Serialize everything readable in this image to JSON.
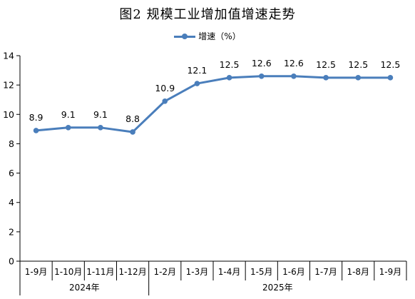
{
  "chart_data": {
    "type": "line",
    "title": "图2  规模工业增加值增速走势",
    "categories": [
      "1-9月",
      "1-10月",
      "1-11月",
      "1-12月",
      "1-2月",
      "1-3月",
      "1-4月",
      "1-5月",
      "1-6月",
      "1-7月",
      "1-8月",
      "1-9月"
    ],
    "groups": [
      {
        "label": "2024年",
        "count": 4
      },
      {
        "label": "2025年",
        "count": 8
      }
    ],
    "series": [
      {
        "name": "增速（%）",
        "values": [
          8.9,
          9.1,
          9.1,
          8.8,
          10.9,
          12.1,
          12.5,
          12.6,
          12.6,
          12.5,
          12.5,
          12.5
        ]
      }
    ],
    "data_labels": [
      "8.9",
      "9.1",
      "9.1",
      "8.8",
      "10.9",
      "12.1",
      "12.5",
      "12.6",
      "12.6",
      "12.5",
      "12.5",
      "12.5"
    ],
    "ylim": [
      0,
      14
    ],
    "yticks": [
      0,
      2,
      4,
      6,
      8,
      10,
      12,
      14
    ],
    "xlabel": "",
    "ylabel": "",
    "legend_position": "top-center",
    "grid": false,
    "line_color": "#4a7ebb"
  }
}
